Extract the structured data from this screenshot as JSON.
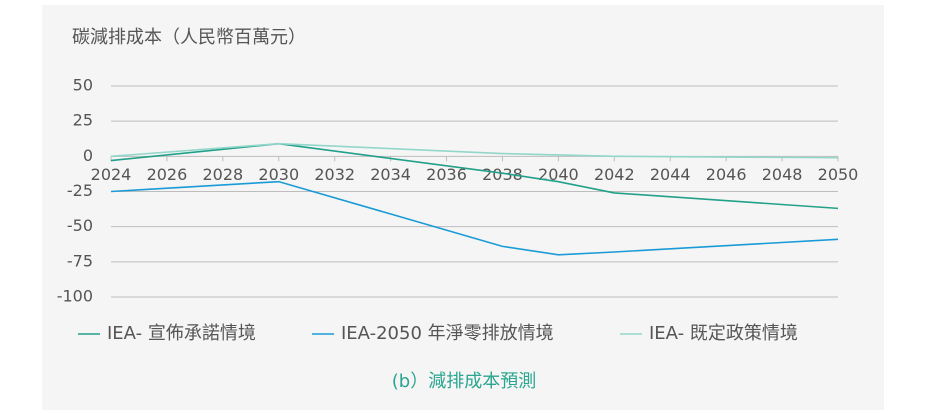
{
  "chart_data": {
    "type": "line",
    "y_axis_label": "碳減排成本（人民幣百萬元）",
    "caption": "(b）減排成本預測",
    "x": [
      2024,
      2030,
      2038,
      2040,
      2042,
      2050
    ],
    "xlim": [
      2024,
      2050
    ],
    "xticks": [
      2024,
      2026,
      2028,
      2030,
      2032,
      2034,
      2036,
      2038,
      2040,
      2042,
      2044,
      2046,
      2048,
      2050
    ],
    "ylim": [
      -100,
      50
    ],
    "yticks": [
      50,
      25,
      0,
      -25,
      -50,
      -75,
      -100
    ],
    "grid": true,
    "legend": "bottom",
    "series": [
      {
        "name": "IEA- 宣佈承諾情境",
        "color": "#22a08a",
        "values": [
          -3,
          9,
          -12,
          -18,
          -26,
          -37
        ]
      },
      {
        "name": "IEA-2050 年淨零排放情境",
        "color": "#1a9bd7",
        "values": [
          -25,
          -18,
          -64,
          -70,
          -68,
          -59
        ]
      },
      {
        "name": "IEA- 既定政策情境",
        "color": "#93d6ca",
        "values": [
          0,
          9,
          2,
          1,
          0,
          -1
        ]
      }
    ]
  }
}
